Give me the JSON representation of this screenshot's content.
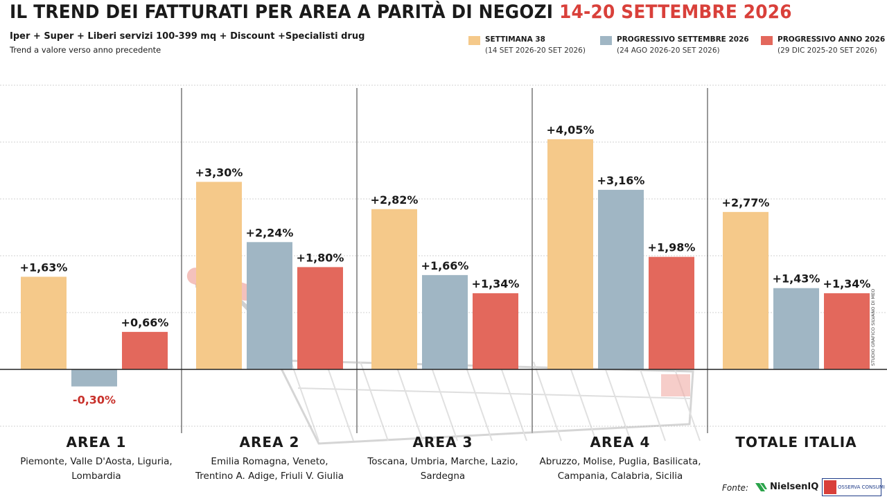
{
  "header": {
    "title_main": "IL TREND DEI FATTURATI PER AREA A PARITÀ DI NEGOZI ",
    "title_dates": "14-20 SETTEMBRE 2026",
    "subtitle": "Iper + Super + Liberi servizi 100-399 mq + Discount +Specialisti drug",
    "note": "Trend a valore verso anno precedente"
  },
  "legend": [
    {
      "label": "SETTIMANA 38",
      "range": "(14 SET 2026-20 SET 2026)",
      "color": "#f5c98a"
    },
    {
      "label": "PROGRESSIVO SETTEMBRE 2026",
      "range": "(24 AGO 2026-20 SET 2026)",
      "color": "#a0b6c4"
    },
    {
      "label": "PROGRESSIVO ANNO 2026",
      "range": "(29 DIC 2025-20 SET 2026)",
      "color": "#e3685c"
    }
  ],
  "chart_data": {
    "type": "bar",
    "categories": [
      "AREA 1",
      "AREA 2",
      "AREA 3",
      "AREA 4",
      "TOTALE ITALIA"
    ],
    "category_regions": [
      "Piemonte, Valle D'Aosta, Liguria,\nLombardia",
      "Emilia Romagna, Veneto,\nTrentino A. Adige, Friuli V. Giulia",
      "Toscana, Umbria, Marche, Lazio,\nSardegna",
      "Abruzzo, Molise, Puglia, Basilicata,\nCampania, Calabria, Sicilia",
      ""
    ],
    "series": [
      {
        "name": "SETTIMANA 38",
        "color": "#f5c98a",
        "values": [
          1.63,
          3.3,
          2.82,
          4.05,
          2.77
        ],
        "labels": [
          "+1,63%",
          "+3,30%",
          "+2,82%",
          "+4,05%",
          "+2,77%"
        ]
      },
      {
        "name": "PROGRESSIVO SETTEMBRE 2026",
        "color": "#a0b6c4",
        "values": [
          -0.3,
          2.24,
          1.66,
          3.16,
          1.43
        ],
        "labels": [
          "-0,30%",
          "+2,24%",
          "+1,66%",
          "+3,16%",
          "+1,43%"
        ]
      },
      {
        "name": "PROGRESSIVO ANNO 2026",
        "color": "#e3685c",
        "values": [
          0.66,
          1.8,
          1.34,
          1.98,
          1.34
        ],
        "labels": [
          "+0,66%",
          "+1,80%",
          "+1,34%",
          "+1,98%",
          "+1,34%"
        ]
      }
    ],
    "ylim": [
      -1,
      5
    ],
    "grid": true,
    "negative_label_color": "#c8312b"
  },
  "credit": "STUDIO GRAFICO SILVANO DI MEO",
  "sources": {
    "label": "Fonte:",
    "nielsen": "NielsenIQ",
    "osserva": "OSSERVA CONSUMI",
    "nielsen_color": "#1a1a1a",
    "nielsen_mark_color": "#2aa34a"
  }
}
